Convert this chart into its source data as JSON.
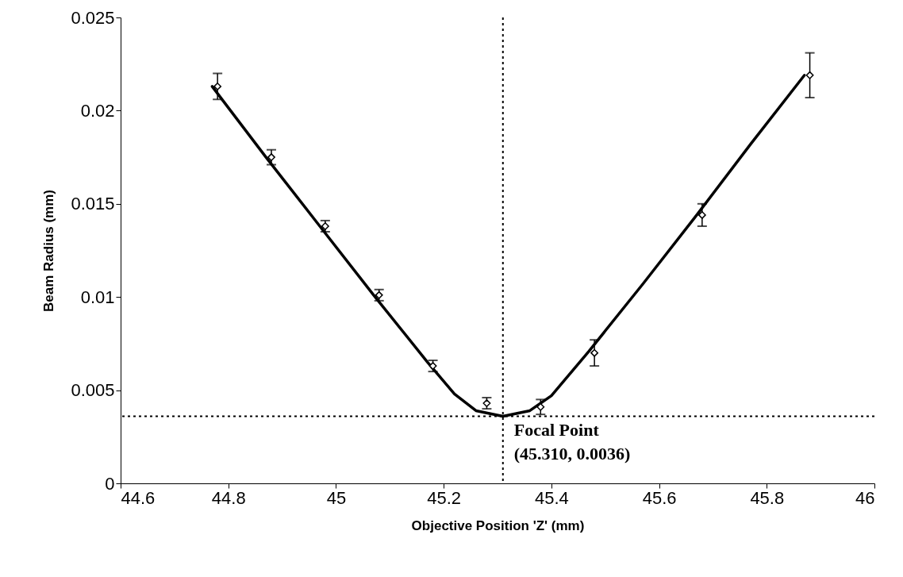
{
  "chart_data": {
    "type": "scatter",
    "xlabel": "Objective Position 'Z' (mm)",
    "ylabel": "Beam Radius (mm)",
    "xlim": [
      44.6,
      46
    ],
    "xticks": [
      44.6,
      44.8,
      45,
      45.2,
      45.4,
      45.6,
      45.8,
      46
    ],
    "ylim": [
      0,
      0.025
    ],
    "yticks": [
      0,
      0.005,
      0.01,
      0.015,
      0.02,
      0.025
    ],
    "grid": false,
    "marker": "diamond",
    "series": [
      {
        "type": "line",
        "marker": "none",
        "color": "#000000",
        "line_style": "solid",
        "x": [
          44.77,
          44.87,
          44.97,
          45.07,
          45.17,
          45.22,
          45.26,
          45.31,
          45.36,
          45.4,
          45.47,
          45.57,
          45.67,
          45.77,
          45.87
        ],
        "values": [
          0.0213,
          0.0175,
          0.0138,
          0.0101,
          0.0065,
          0.0048,
          0.0039,
          0.0036,
          0.0039,
          0.0047,
          0.0071,
          0.0107,
          0.0144,
          0.0182,
          0.0219
        ]
      },
      {
        "color": "#000000",
        "x": [
          44.78,
          44.88,
          44.98,
          45.08,
          45.18,
          45.28,
          45.38,
          45.48,
          45.68,
          45.88
        ],
        "values": [
          0.0213,
          0.0175,
          0.0138,
          0.0101,
          0.0063,
          0.0043,
          0.0041,
          0.007,
          0.0144,
          0.0219
        ],
        "errors": [
          0.0007,
          0.0004,
          0.0003,
          0.0003,
          0.0003,
          0.0003,
          0.0004,
          0.0007,
          0.0006,
          0.0012
        ]
      }
    ],
    "ref_lines": [
      {
        "axis": "x",
        "value": 45.31,
        "line_style": "dotted",
        "color": "#000000"
      },
      {
        "axis": "y",
        "value": 0.0036,
        "line_style": "dotted",
        "color": "#000000"
      }
    ],
    "annotations": [
      {
        "text": "Focal Point\n(45.310, 0.0036)",
        "x": 45.31,
        "y": 0.0036
      }
    ]
  }
}
